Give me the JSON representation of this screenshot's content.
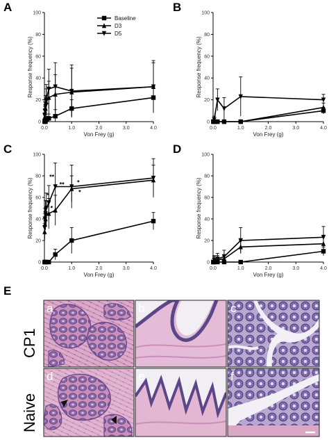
{
  "figure": {
    "panel_letters": [
      "A",
      "B",
      "C",
      "D"
    ],
    "histology_letter": "E",
    "row_labels": [
      "CP1",
      "Naive"
    ],
    "image_letters": [
      "a",
      "b",
      "c",
      "d",
      "e",
      "f"
    ],
    "legend": [
      "Baseline",
      "D3",
      "D5"
    ]
  },
  "colors": {
    "line": "#000000",
    "he_pink": "#d99ac0",
    "he_purple": "#6a4d96",
    "stroma": "#e9c9de",
    "lumen": "#f4f2f6"
  },
  "chart_data": [
    {
      "panel": "A",
      "type": "line",
      "xlabel": "Von Frey (g)",
      "ylabel": "Response frequency (%)",
      "xlim": [
        0,
        4.0
      ],
      "ylim": [
        0,
        100
      ],
      "xticks": [
        "0.0",
        "1.0",
        "2.0",
        "3.0",
        "4.0"
      ],
      "yticks": [
        "0",
        "20",
        "40",
        "60",
        "80",
        "100"
      ],
      "legend_position": "top-center",
      "series": [
        {
          "name": "Baseline",
          "marker": "square",
          "x": [
            0.008,
            0.02,
            0.04,
            0.07,
            0.16,
            0.4,
            1.0,
            4.0
          ],
          "y": [
            0,
            0,
            0,
            2,
            3,
            5,
            12,
            22
          ],
          "err": [
            0,
            0,
            0,
            3,
            4,
            6,
            8,
            10
          ]
        },
        {
          "name": "D3",
          "marker": "triangle-up",
          "x": [
            0.008,
            0.02,
            0.04,
            0.07,
            0.16,
            0.4,
            1.0,
            4.0
          ],
          "y": [
            4,
            8,
            12,
            18,
            22,
            25,
            27,
            32
          ],
          "err": [
            4,
            6,
            8,
            12,
            15,
            18,
            22,
            22
          ]
        },
        {
          "name": "D5",
          "marker": "triangle-down",
          "x": [
            0.008,
            0.02,
            0.04,
            0.07,
            0.16,
            0.4,
            1.0,
            4.0
          ],
          "y": [
            6,
            10,
            14,
            20,
            30,
            32,
            28,
            32
          ],
          "err": [
            5,
            8,
            10,
            14,
            18,
            22,
            24,
            24
          ]
        }
      ],
      "annotations": []
    },
    {
      "panel": "B",
      "type": "line",
      "xlabel": "Von Frey (g)",
      "ylabel": "Response frequency (%)",
      "xlim": [
        0,
        4.0
      ],
      "ylim": [
        0,
        100
      ],
      "xticks": [
        "0.0",
        "1.0",
        "2.0",
        "3.0",
        "4.0"
      ],
      "yticks": [
        "0",
        "20",
        "40",
        "60",
        "80",
        "100"
      ],
      "series": [
        {
          "name": "Baseline",
          "marker": "square",
          "x": [
            0.008,
            0.04,
            0.16,
            0.4,
            1.0,
            4.0
          ],
          "y": [
            0,
            0,
            0,
            0,
            0,
            10
          ],
          "err": [
            0,
            0,
            0,
            0,
            0,
            3
          ]
        },
        {
          "name": "D3",
          "marker": "triangle-up",
          "x": [
            0.008,
            0.04,
            0.16,
            0.4,
            1.0,
            4.0
          ],
          "y": [
            0,
            0,
            0,
            0,
            0,
            13
          ],
          "err": [
            0,
            0,
            0,
            0,
            0,
            4
          ]
        },
        {
          "name": "D5",
          "marker": "triangle-down",
          "x": [
            0.008,
            0.04,
            0.16,
            0.4,
            1.0,
            4.0
          ],
          "y": [
            0,
            2,
            20,
            12,
            23,
            20
          ],
          "err": [
            0,
            3,
            10,
            10,
            18,
            5
          ]
        }
      ],
      "annotations": []
    },
    {
      "panel": "C",
      "type": "line",
      "xlabel": "Von Frey (g)",
      "ylabel": "Response frequency (%)",
      "xlim": [
        0,
        4.0
      ],
      "ylim": [
        0,
        100
      ],
      "xticks": [
        "0.0",
        "1.0",
        "2.0",
        "3.0",
        "4.0"
      ],
      "yticks": [
        "0",
        "20",
        "40",
        "60",
        "80",
        "100"
      ],
      "series": [
        {
          "name": "Baseline",
          "marker": "square",
          "x": [
            0.008,
            0.02,
            0.04,
            0.07,
            0.16,
            0.4,
            1.0,
            4.0
          ],
          "y": [
            0,
            0,
            0,
            0,
            0,
            7,
            20,
            38
          ],
          "err": [
            0,
            0,
            0,
            0,
            0,
            5,
            12,
            8
          ]
        },
        {
          "name": "D3",
          "marker": "triangle-up",
          "x": [
            0.008,
            0.02,
            0.04,
            0.07,
            0.16,
            0.4,
            1.0,
            4.0
          ],
          "y": [
            28,
            35,
            40,
            45,
            45,
            48,
            68,
            76
          ],
          "err": [
            8,
            10,
            10,
            12,
            14,
            14,
            12,
            14
          ]
        },
        {
          "name": "D5",
          "marker": "triangle-down",
          "x": [
            0.008,
            0.02,
            0.04,
            0.07,
            0.16,
            0.4,
            1.0,
            4.0
          ],
          "y": [
            32,
            40,
            45,
            50,
            55,
            70,
            70,
            78
          ],
          "err": [
            10,
            10,
            12,
            14,
            16,
            22,
            20,
            18
          ]
        }
      ],
      "annotations": [
        {
          "text": "*",
          "x": 0.08,
          "y": 60
        },
        {
          "text": "**",
          "x": 0.18,
          "y": 77
        },
        {
          "text": "*",
          "x": 0.22,
          "y": 48
        },
        {
          "text": "**",
          "x": 0.55,
          "y": 70
        },
        {
          "text": "*",
          "x": 1.2,
          "y": 72
        },
        {
          "text": "*",
          "x": 1.25,
          "y": 63
        }
      ]
    },
    {
      "panel": "D",
      "type": "line",
      "xlabel": "Von Frey (g)",
      "ylabel": "Response frequency (%)",
      "xlim": [
        0,
        4.0
      ],
      "ylim": [
        0,
        100
      ],
      "xticks": [
        "0.0",
        "1.0",
        "2.0",
        "3.0",
        "4.0"
      ],
      "yticks": [
        "0",
        "20",
        "40",
        "60",
        "80",
        "100"
      ],
      "series": [
        {
          "name": "Baseline",
          "marker": "square",
          "x": [
            0.008,
            0.04,
            0.16,
            0.4,
            1.0,
            4.0
          ],
          "y": [
            0,
            0,
            0,
            0,
            0,
            10
          ],
          "err": [
            0,
            0,
            0,
            0,
            0,
            4
          ]
        },
        {
          "name": "D3",
          "marker": "triangle-up",
          "x": [
            0.008,
            0.04,
            0.16,
            0.4,
            1.0,
            4.0
          ],
          "y": [
            0,
            2,
            2,
            3,
            14,
            17
          ],
          "err": [
            0,
            3,
            4,
            4,
            6,
            8
          ]
        },
        {
          "name": "D5",
          "marker": "triangle-down",
          "x": [
            0.008,
            0.04,
            0.16,
            0.4,
            1.0,
            4.0
          ],
          "y": [
            0,
            2,
            3,
            5,
            20,
            23
          ],
          "err": [
            0,
            4,
            5,
            6,
            12,
            10
          ]
        }
      ],
      "annotations": []
    }
  ]
}
